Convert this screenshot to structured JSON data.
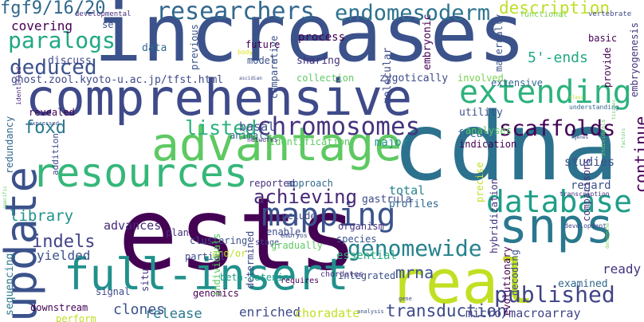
{
  "word_cloud": {
    "background": "#ffffff",
    "words": [
      {
        "text": "increases",
        "color": "#3b528b"
      },
      {
        "text": "ests",
        "color": "#440154"
      },
      {
        "text": "cdna",
        "color": "#2c728e"
      },
      {
        "text": "comprehensive",
        "color": "#3e4a89"
      },
      {
        "text": "advantage",
        "color": "#5ec962"
      },
      {
        "text": "full-insert",
        "color": "#21918c"
      },
      {
        "text": "update",
        "color": "#3b528b"
      },
      {
        "text": "real",
        "color": "#c2df23"
      },
      {
        "text": "snps",
        "color": "#2a788e"
      },
      {
        "text": "resources",
        "color": "#35b779"
      },
      {
        "text": "mapping",
        "color": "#3b528b"
      },
      {
        "text": "database",
        "color": "#1f9e89"
      },
      {
        "text": "extending",
        "color": "#2db27d"
      },
      {
        "text": "chromosomes",
        "color": "#46327e"
      },
      {
        "text": "researchers",
        "color": "#31688e"
      },
      {
        "text": "endomesoderm",
        "color": "#2c728e"
      },
      {
        "text": "published",
        "color": "#414487"
      },
      {
        "text": "genomewide",
        "color": "#26828e"
      },
      {
        "text": "paralogs",
        "color": "#22a884"
      },
      {
        "text": "deduced",
        "color": "#3b528b"
      },
      {
        "text": "scaffolds",
        "color": "#440154"
      },
      {
        "text": "listed",
        "color": "#2db27d"
      },
      {
        "text": "achieving",
        "color": "#482878"
      },
      {
        "text": "fgf9/16/20",
        "color": "#31688e"
      },
      {
        "text": "transduction",
        "color": "#3e4a89"
      },
      {
        "text": "description",
        "color": "#bddf26"
      },
      {
        "text": "foxd",
        "color": "#2a788e"
      },
      {
        "text": "indels",
        "color": "#414487"
      },
      {
        "text": "library",
        "color": "#21918c"
      },
      {
        "text": "continue",
        "color": "#440154"
      },
      {
        "text": "mrna",
        "color": "#3b528b"
      },
      {
        "text": "5'-ends",
        "color": "#22a884"
      },
      {
        "text": "micro/macroarray",
        "color": "#414487"
      },
      {
        "text": "release",
        "color": "#2a788e"
      },
      {
        "text": "clones",
        "color": "#3b528b"
      },
      {
        "text": "enriched",
        "color": "#3e4a89"
      },
      {
        "text": "choradate",
        "color": "#c2df23"
      },
      {
        "text": "yielded",
        "color": "#3b528b"
      },
      {
        "text": "advances",
        "color": "#482878"
      },
      {
        "text": "ghost.zool.kyoto-u.ac.jp/tfst.html",
        "color": "#3e4a89"
      },
      {
        "text": "sequencing",
        "color": "#2a788e"
      },
      {
        "text": "ready",
        "color": "#46327e"
      },
      {
        "text": "examined",
        "color": "#31688e"
      },
      {
        "text": "decoding",
        "color": "#3b528b"
      },
      {
        "text": "total",
        "color": "#26828e"
      },
      {
        "text": "profiles",
        "color": "#31688e"
      },
      {
        "text": "studies",
        "color": "#3b528b"
      },
      {
        "text": "basal",
        "color": "#3b528b"
      },
      {
        "text": "covering",
        "color": "#440154"
      },
      {
        "text": "discuss",
        "color": "#3e4a89"
      },
      {
        "text": "data",
        "color": "#31688e"
      },
      {
        "text": "future",
        "color": "#440154"
      },
      {
        "text": "model",
        "color": "#3b528b"
      },
      {
        "text": "process",
        "color": "#440154"
      },
      {
        "text": "sharing",
        "color": "#46327e"
      },
      {
        "text": "collection",
        "color": "#5ec962"
      },
      {
        "text": "zygotically",
        "color": "#3e4a89"
      },
      {
        "text": "involved",
        "color": "#7ad151"
      },
      {
        "text": "extensive",
        "color": "#31688e"
      },
      {
        "text": "embryonic",
        "color": "#440154"
      },
      {
        "text": "maternally",
        "color": "#3b528b"
      },
      {
        "text": "molecular",
        "color": "#3e4a89"
      },
      {
        "text": "comparative",
        "color": "#3b528b"
      },
      {
        "text": "previous",
        "color": "#3b528b"
      },
      {
        "text": "clustering",
        "color": "#3b528b"
      },
      {
        "text": "plan",
        "color": "#46327e"
      },
      {
        "text": "enable",
        "color": "#3e4a89"
      },
      {
        "text": "include",
        "color": "#3e4a89"
      },
      {
        "text": "gastrula",
        "color": "#3e4a89"
      },
      {
        "text": "organism",
        "color": "#46327e"
      },
      {
        "text": "species",
        "color": "#3b528b"
      },
      {
        "text": "essential",
        "color": "#2db27d"
      },
      {
        "text": "integrated",
        "color": "#3b528b"
      },
      {
        "text": "approach",
        "color": "#31688e"
      },
      {
        "text": "reported",
        "color": "#46327e"
      },
      {
        "text": "identification",
        "color": "#5ec962"
      },
      {
        "text": "networks",
        "color": "#46327e"
      },
      {
        "text": "animals",
        "color": "#31688e"
      },
      {
        "text": "major",
        "color": "#21918c"
      },
      {
        "text": "focus",
        "color": "#31688e"
      },
      {
        "text": "indication",
        "color": "#440154"
      },
      {
        "text": "utility",
        "color": "#3b528b"
      },
      {
        "text": "analyses",
        "color": "#5ec962"
      },
      {
        "text": "regard",
        "color": "#3b528b"
      },
      {
        "text": "comparisons",
        "color": "#46327e"
      },
      {
        "text": "precise",
        "color": "#c2df23"
      },
      {
        "text": "hybridization",
        "color": "#46327e"
      },
      {
        "text": "provide",
        "color": "#440154"
      },
      {
        "text": "basic",
        "color": "#440154"
      },
      {
        "text": "set",
        "color": "#3b528b"
      },
      {
        "text": "embryogenesis",
        "color": "#46327e"
      },
      {
        "text": "functional",
        "color": "#7ad151"
      },
      {
        "text": "vertebrate",
        "color": "#3e4a89"
      },
      {
        "text": "developmental",
        "color": "#46327e"
      },
      {
        "text": "understanding",
        "color": "#31688e"
      },
      {
        "text": "redundancy",
        "color": "#31688e"
      },
      {
        "text": "revealed",
        "color": "#440154"
      },
      {
        "text": "addition",
        "color": "#3e4a89"
      },
      {
        "text": "identified",
        "color": "#482878"
      },
      {
        "text": "expressed",
        "color": "#3b528b"
      },
      {
        "text": "and/or",
        "color": "#bddf26"
      },
      {
        "text": "stage",
        "color": "#3e4a89"
      },
      {
        "text": "partial",
        "color": "#3e4a89"
      },
      {
        "text": "gradually",
        "color": "#5ec962"
      },
      {
        "text": "determined",
        "color": "#3e4a89"
      },
      {
        "text": "beta-catenin",
        "color": "#1f9e89"
      },
      {
        "text": "chordates",
        "color": "#46327e"
      },
      {
        "text": "requires",
        "color": "#440154"
      },
      {
        "text": "genomics",
        "color": "#440154"
      },
      {
        "text": "individuals",
        "color": "#5ec962"
      },
      {
        "text": "signal",
        "color": "#3e4a89"
      },
      {
        "text": "situ",
        "color": "#46327e"
      },
      {
        "text": "downstream",
        "color": "#440154"
      },
      {
        "text": "perform",
        "color": "#bddf26"
      },
      {
        "text": "analysis",
        "color": "#3b528b"
      },
      {
        "text": "gene",
        "color": "#3e4a89"
      },
      {
        "text": "evolutionary",
        "color": "#440154"
      },
      {
        "text": "transcription",
        "color": "#46327e"
      },
      {
        "text": "development",
        "color": "#3e4a89"
      },
      {
        "text": "embryos",
        "color": "#3e4a89"
      },
      {
        "text": "body",
        "color": "#dde318"
      },
      {
        "text": "ascidian",
        "color": "#3e4a89"
      },
      {
        "text": "class",
        "color": "#bddf26"
      },
      {
        "text": "individuals",
        "color": "#5ec962"
      },
      {
        "text": "factors",
        "color": "#5ec962"
      },
      {
        "text": "determine",
        "color": "#7ad151"
      },
      {
        "text": "tissues",
        "color": "#5ec962"
      },
      {
        "text": "genes",
        "color": "#3e4a89"
      },
      {
        "text": "specific",
        "color": "#5ec962"
      }
    ]
  }
}
